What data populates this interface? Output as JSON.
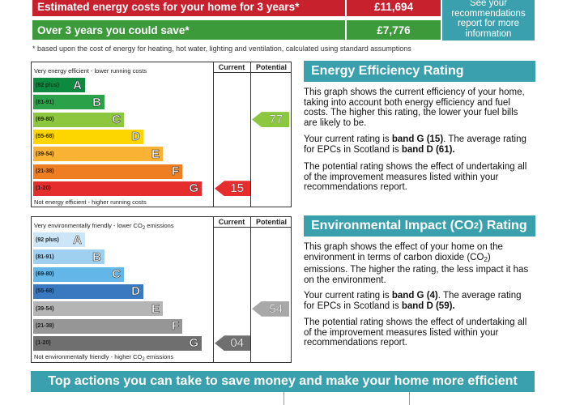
{
  "costs": {
    "estimated_label": "Estimated energy costs for your home for 3 years*",
    "estimated_value": "£11,694",
    "save_label": "Over 3 years you could save*",
    "save_value": "£7,776",
    "see_recs": "See your recommendations report for more information",
    "footnote": "* based upon the cost of energy for heating, hot water, lighting and ventilation, calculated using standard assumptions",
    "colors": {
      "estimated": "#c8212e",
      "save": "#3d9a3b",
      "teal": "#3aa0ad"
    }
  },
  "energy_chart": {
    "top_note": "Very energy efficient - lower running costs",
    "bottom_note": "Not energy efficient - higher running costs",
    "col_current": "Current",
    "col_potential": "Potential",
    "bands": [
      {
        "range": "(92 plus)",
        "letter": "A",
        "color": "#0d8a3f"
      },
      {
        "range": "(81-91)",
        "letter": "B",
        "color": "#2ba24a"
      },
      {
        "range": "(69-80)",
        "letter": "C",
        "color": "#8dc63f"
      },
      {
        "range": "(55-68)",
        "letter": "D",
        "color": "#fdd600"
      },
      {
        "range": "(39-54)",
        "letter": "E",
        "color": "#f9b233"
      },
      {
        "range": "(21-38)",
        "letter": "F",
        "color": "#ef7d22"
      },
      {
        "range": "(1-20)",
        "letter": "G",
        "color": "#e52d2d"
      }
    ],
    "current": {
      "value": "15",
      "band": "G",
      "color": "#e52d2d"
    },
    "potential": {
      "value": "77",
      "band": "C",
      "color": "#8dc63f"
    }
  },
  "energy_text": {
    "heading": "Energy Efficiency Rating",
    "p1": "This graph shows the current efficiency of your home, taking into account both energy efficiency and fuel costs. The higher this rating, the lower your fuel bills are likely to be.",
    "p2_pre": "Your current rating is ",
    "p2_band": "band G (15)",
    "p2_mid": ". The average rating for EPCs in Scotland is ",
    "p2_avg": "band D (61).",
    "p3": "The potential rating shows the effect of undertaking all of the improvement measures listed within your recommendations report."
  },
  "env_chart": {
    "top_note_pre": "Very environmentally friendly - lower CO",
    "top_note_sub": "2",
    "top_note_post": " emissions",
    "bottom_note_pre": "Not environmentally friendly - higher CO",
    "bottom_note_sub": "2",
    "bottom_note_post": " emissions",
    "col_current": "Current",
    "col_potential": "Potential",
    "bands": [
      {
        "range": "(92 plus)",
        "letter": "A",
        "color": "#cde6f7"
      },
      {
        "range": "(81-91)",
        "letter": "B",
        "color": "#9fd0f0"
      },
      {
        "range": "(69-80)",
        "letter": "C",
        "color": "#63b7e8"
      },
      {
        "range": "(55-68)",
        "letter": "D",
        "color": "#3a79bf"
      },
      {
        "range": "(39-54)",
        "letter": "E",
        "color": "#b5b5b5"
      },
      {
        "range": "(21-38)",
        "letter": "F",
        "color": "#969696"
      },
      {
        "range": "(1-20)",
        "letter": "G",
        "color": "#6f6f6f"
      }
    ],
    "current": {
      "value": "04",
      "band": "G",
      "color": "#6f6f6f"
    },
    "potential": {
      "value": "54",
      "band": "E",
      "color": "#a8a8a8"
    }
  },
  "env_text": {
    "heading_pre": "Environmental Impact (CO",
    "heading_sub": "2",
    "heading_post": ") Rating",
    "p1_pre": "This graph shows the effect of your home on the environment in terms of carbon dioxide (CO",
    "p1_sub": "2",
    "p1_post": ") emissions. The higher the rating, the less impact it has on the environment.",
    "p2_pre": "Your current rating is ",
    "p2_band": "band G (4)",
    "p2_mid": ". The average rating for EPCs in Scotland is ",
    "p2_avg": "band D (59).",
    "p3": "The potential rating shows the effect of undertaking all of the improvement measures listed within your recommendations report."
  },
  "bottom": {
    "banner": "Top actions you can take to save money and make your home more efficient"
  }
}
